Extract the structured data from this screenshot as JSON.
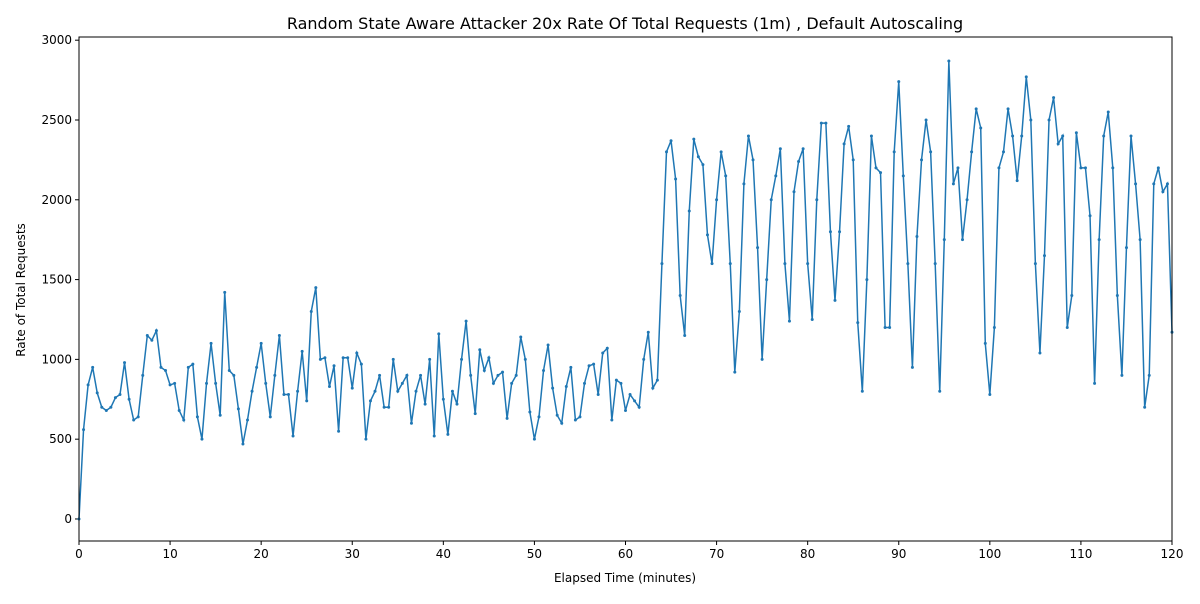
{
  "chart_data": {
    "type": "line",
    "title": "Random State Aware Attacker 20x Rate Of Total Requests (1m) , Default Autoscaling",
    "x_label": "Elapsed Time (minutes)",
    "y_label": "Rate of Total Requests",
    "x": [
      0,
      0.5,
      1,
      1.5,
      2,
      2.5,
      3,
      3.5,
      4,
      4.5,
      5,
      5.5,
      6,
      6.5,
      7,
      7.5,
      8,
      8.5,
      9,
      9.5,
      10,
      10.5,
      11,
      11.5,
      12,
      12.5,
      13,
      13.5,
      14,
      14.5,
      15,
      15.5,
      16,
      16.5,
      17,
      17.5,
      18,
      18.5,
      19,
      19.5,
      20,
      20.5,
      21,
      21.5,
      22,
      22.5,
      23,
      23.5,
      24,
      24.5,
      25,
      25.5,
      26,
      26.5,
      27,
      27.5,
      28,
      28.5,
      29,
      29.5,
      30,
      30.5,
      31,
      31.5,
      32,
      32.5,
      33,
      33.5,
      34,
      34.5,
      35,
      35.5,
      36,
      36.5,
      37,
      37.5,
      38,
      38.5,
      39,
      39.5,
      40,
      40.5,
      41,
      41.5,
      42,
      42.5,
      43,
      43.5,
      44,
      44.5,
      45,
      45.5,
      46,
      46.5,
      47,
      47.5,
      48,
      48.5,
      49,
      49.5,
      50,
      50.5,
      51,
      51.5,
      52,
      52.5,
      53,
      53.5,
      54,
      54.5,
      55,
      55.5,
      56,
      56.5,
      57,
      57.5,
      58,
      58.5,
      59,
      59.5,
      60,
      60.5,
      61,
      61.5,
      62,
      62.5,
      63,
      63.5,
      64,
      64.5,
      65,
      65.5,
      66,
      66.5,
      67,
      67.5,
      68,
      68.5,
      69,
      69.5,
      70,
      70.5,
      71,
      71.5,
      72,
      72.5,
      73,
      73.5,
      74,
      74.5,
      75,
      75.5,
      76,
      76.5,
      77,
      77.5,
      78,
      78.5,
      79,
      79.5,
      80,
      80.5,
      81,
      81.5,
      82,
      82.5,
      83,
      83.5,
      84,
      84.5,
      85,
      85.5,
      86,
      86.5,
      87,
      87.5,
      88,
      88.5,
      89,
      89.5,
      90,
      90.5,
      91,
      91.5,
      92,
      92.5,
      93,
      93.5,
      94,
      94.5,
      95,
      95.5,
      96,
      96.5,
      97,
      97.5,
      98,
      98.5,
      99,
      99.5,
      100,
      100.5,
      101,
      101.5,
      102,
      102.5,
      103,
      103.5,
      104,
      104.5,
      105,
      105.5,
      106,
      106.5,
      107,
      107.5,
      108,
      108.5,
      109,
      109.5,
      110,
      110.5,
      111,
      111.5,
      112,
      112.5,
      113,
      113.5,
      114,
      114.5,
      115,
      115.5,
      116,
      116.5,
      117,
      117.5,
      118,
      118.5,
      119,
      119.5,
      120
    ],
    "series": [
      {
        "name": "Rate of Total Requests",
        "color": "#1f77b4",
        "values": [
          0,
          560,
          840,
          950,
          790,
          700,
          680,
          700,
          760,
          780,
          980,
          750,
          620,
          640,
          900,
          1150,
          1120,
          1180,
          950,
          930,
          840,
          850,
          680,
          620,
          950,
          970,
          640,
          500,
          850,
          1100,
          850,
          650,
          1420,
          930,
          900,
          690,
          470,
          620,
          800,
          950,
          1100,
          850,
          640,
          900,
          1150,
          780,
          780,
          520,
          800,
          1050,
          740,
          1300,
          1450,
          1000,
          1010,
          830,
          960,
          550,
          1010,
          1010,
          820,
          1040,
          970,
          500,
          740,
          800,
          900,
          700,
          700,
          1000,
          800,
          850,
          900,
          600,
          800,
          900,
          720,
          1000,
          520,
          1160,
          750,
          530,
          800,
          720,
          1000,
          1240,
          900,
          660,
          1060,
          930,
          1010,
          850,
          900,
          920,
          630,
          850,
          900,
          1140,
          1000,
          670,
          500,
          640,
          930,
          1090,
          820,
          650,
          600,
          830,
          950,
          620,
          640,
          850,
          960,
          970,
          780,
          1040,
          1070,
          620,
          870,
          850,
          680,
          780,
          740,
          700,
          1000,
          1170,
          820,
          870,
          1600,
          2300,
          2370,
          2130,
          1400,
          1150,
          1930,
          2380,
          2270,
          2220,
          1780,
          1600,
          2000,
          2300,
          2150,
          1600,
          920,
          1300,
          2100,
          2400,
          2250,
          1700,
          1000,
          1500,
          2000,
          2150,
          2320,
          1600,
          1240,
          2050,
          2240,
          2320,
          1600,
          1250,
          2000,
          2480,
          2480,
          1800,
          1370,
          1800,
          2350,
          2460,
          2250,
          1230,
          800,
          1500,
          2400,
          2200,
          2170,
          1200,
          1200,
          2300,
          2740,
          2150,
          1600,
          950,
          1770,
          2250,
          2500,
          2300,
          1600,
          800,
          1750,
          2870,
          2100,
          2200,
          1750,
          2000,
          2300,
          2570,
          2450,
          1100,
          780,
          1200,
          2200,
          2300,
          2570,
          2400,
          2120,
          2400,
          2770,
          2500,
          1600,
          1040,
          1650,
          2500,
          2640,
          2350,
          2400,
          1200,
          1400,
          2420,
          2200,
          2200,
          1900,
          850,
          1750,
          2400,
          2550,
          2200,
          1400,
          900,
          1700,
          2400,
          2100,
          1750,
          700,
          900,
          2100,
          2200,
          2050,
          2100,
          1170
        ]
      }
    ],
    "xlim": [
      0,
      120
    ],
    "ylim": [
      -138,
      3020
    ],
    "xticks": [
      0,
      10,
      20,
      30,
      40,
      50,
      60,
      70,
      80,
      90,
      100,
      110,
      120
    ],
    "yticks": [
      0,
      500,
      1000,
      1500,
      2000,
      2500,
      3000
    ]
  }
}
